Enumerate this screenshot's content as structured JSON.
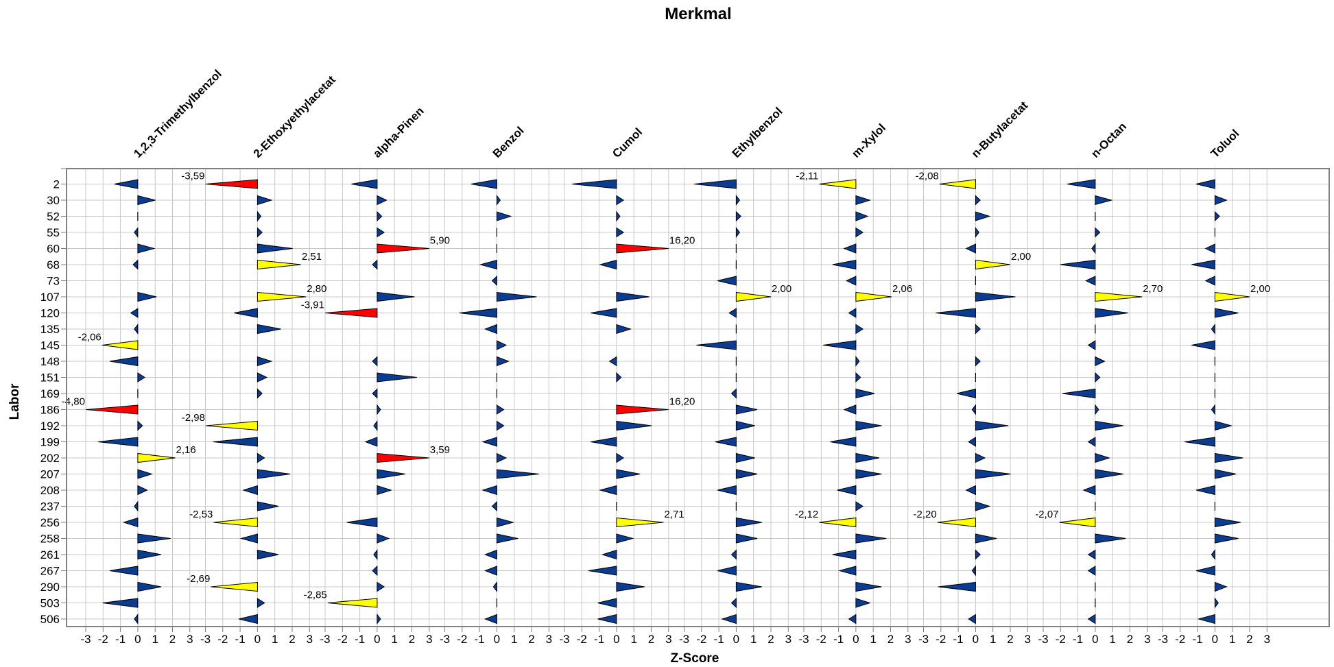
{
  "chart_data": {
    "type": "panel-z-score-chart",
    "title": "Merkmal",
    "xlabel": "Z-Score",
    "ylabel": "Labor",
    "xlim": [
      -3,
      3
    ],
    "x_ticks": [
      "-3",
      "-2",
      "-1",
      "0",
      "1",
      "2",
      "3"
    ],
    "grid": true,
    "colors": {
      "ok": "#0a3d91",
      "warning": "#ffff00",
      "action": "#ff0000",
      "grid": "#c8c8c8",
      "frame": "#808080"
    },
    "thresholds": {
      "warning": 2,
      "action": 3
    },
    "labs": [
      "2",
      "30",
      "52",
      "55",
      "60",
      "68",
      "73",
      "107",
      "120",
      "135",
      "145",
      "148",
      "151",
      "169",
      "186",
      "192",
      "199",
      "202",
      "207",
      "208",
      "237",
      "256",
      "258",
      "261",
      "267",
      "290",
      "503",
      "506"
    ],
    "series": [
      {
        "name": "1,2,3-Trimethylbenzol",
        "values": [
          -1.0,
          0.75,
          0,
          -0.1,
          0.7,
          -0.2,
          null,
          0.8,
          -0.3,
          -0.05,
          -2.06,
          -1.2,
          0.3,
          0,
          -4.8,
          0.2,
          -1.7,
          2.16,
          0.6,
          0.4,
          -0.05,
          -0.6,
          1.4,
          1.0,
          -1.2,
          1.0,
          -1.5,
          -0.1
        ]
      },
      {
        "name": "2-Ethoxyethylacetat",
        "values": [
          -3.59,
          0.6,
          0.05,
          0.2,
          1.5,
          2.51,
          null,
          2.8,
          -1.0,
          1.0,
          null,
          0.6,
          0.4,
          0.2,
          null,
          -2.98,
          -1.9,
          0.3,
          1.4,
          -0.6,
          0.9,
          -2.53,
          -0.7,
          0.9,
          null,
          -2.69,
          0.3,
          -0.8
        ]
      },
      {
        "name": "alpha-Pinen",
        "values": [
          -1.1,
          0.4,
          0.2,
          0.3,
          5.9,
          -0.2,
          null,
          1.6,
          -3.91,
          null,
          null,
          -0.2,
          1.7,
          -0.2,
          0.1,
          -0.1,
          -0.5,
          3.59,
          1.2,
          0.6,
          null,
          -1.3,
          0.5,
          -0.1,
          -0.2,
          0.3,
          -2.85,
          0.1
        ]
      },
      {
        "name": "Benzol",
        "values": [
          -1.1,
          0.1,
          0.6,
          0,
          0,
          -0.7,
          -0.2,
          1.7,
          -1.6,
          -0.5,
          0.4,
          0.5,
          0,
          0,
          0.3,
          0.3,
          -0.6,
          0.4,
          1.8,
          -0.6,
          -0.2,
          0.7,
          0.9,
          -0.5,
          -0.5,
          -0.1,
          0,
          -0.5
        ]
      },
      {
        "name": "Cumol",
        "values": [
          -1.9,
          0.3,
          0.1,
          0.3,
          16.2,
          -0.7,
          null,
          1.4,
          -1.1,
          0.6,
          null,
          -0.3,
          0.2,
          null,
          16.2,
          1.5,
          -1.1,
          0.3,
          1.0,
          -0.7,
          0,
          2.71,
          0.7,
          -0.6,
          -1.2,
          1.2,
          -0.8,
          -0.8
        ]
      },
      {
        "name": "Ethylbenzol",
        "values": [
          -1.8,
          0.1,
          0.2,
          0.1,
          0,
          0,
          -0.8,
          2.0,
          -0.3,
          0,
          -1.7,
          0,
          0,
          -0.2,
          0.9,
          0.8,
          -0.9,
          0.8,
          0.9,
          -0.8,
          0,
          1.1,
          0.9,
          -0.2,
          -0.8,
          1.1,
          -0.2,
          -0.6
        ]
      },
      {
        "name": "m-Xylol",
        "values": [
          -2.11,
          0.6,
          0.5,
          0.3,
          -0.5,
          -1.0,
          -0.4,
          2.06,
          -0.3,
          0.3,
          -1.4,
          0.1,
          0.2,
          0.8,
          -0.5,
          1.1,
          -1.1,
          1.0,
          1.1,
          -0.8,
          0.3,
          -2.12,
          1.3,
          -1.0,
          -0.7,
          1.1,
          0.6,
          -0.3
        ]
      },
      {
        "name": "n-Butylacetat",
        "values": [
          -2.08,
          0.2,
          0.6,
          0.1,
          -0.4,
          2.0,
          0,
          1.7,
          -1.7,
          0.2,
          null,
          0.2,
          0,
          -0.8,
          -0.1,
          1.4,
          -0.3,
          0.4,
          1.5,
          -0.4,
          0.6,
          -2.2,
          0.9,
          0.2,
          -0.1,
          -1.6,
          null,
          -0.3
        ]
      },
      {
        "name": "n-Octan",
        "values": [
          -1.2,
          0.7,
          0,
          0.2,
          -0.1,
          -1.5,
          -0.4,
          2.7,
          1.4,
          0,
          -0.3,
          0.4,
          0.2,
          -1.4,
          0.1,
          1.2,
          -0.3,
          0.6,
          1.2,
          -0.5,
          0,
          -2.07,
          1.3,
          -0.3,
          -0.3,
          0,
          0,
          -0.3
        ]
      },
      {
        "name": "Toluol",
        "values": [
          -0.8,
          0.5,
          0.2,
          0,
          -0.4,
          -1.0,
          -0.4,
          2.0,
          1.0,
          -0.1,
          -1.0,
          0,
          0,
          0,
          -0.1,
          0.7,
          -1.3,
          1.2,
          0.9,
          -0.8,
          0,
          1.1,
          1.0,
          -0.1,
          -0.8,
          0.5,
          0.1,
          -0.7
        ]
      }
    ]
  }
}
